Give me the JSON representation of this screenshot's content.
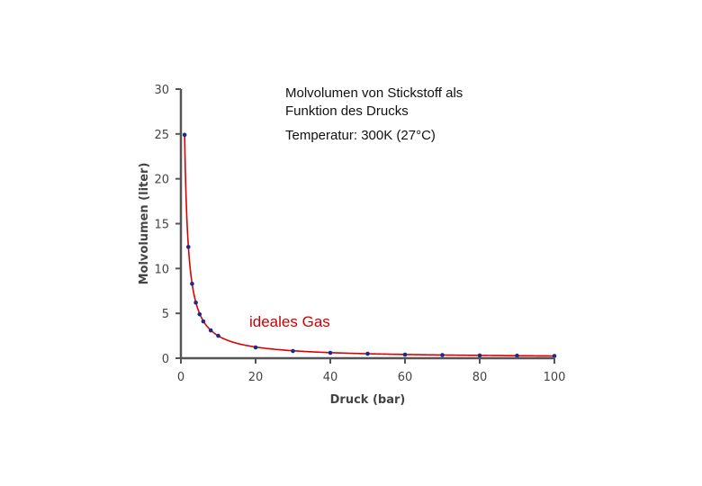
{
  "annotations": {
    "title_line1": "Molvolumen von Stickstoff als",
    "title_line2": "Funktion des Drucks",
    "temperature": "Temperatur: 300K  (27°C)",
    "curve_label": "ideales Gas"
  },
  "chart_data": {
    "type": "scatter",
    "xlabel": "Druck (bar)",
    "ylabel": "Molvolumen (liter)",
    "xlim": [
      0,
      100
    ],
    "ylim": [
      0,
      30
    ],
    "xticks": [
      0,
      20,
      40,
      60,
      80,
      100
    ],
    "yticks": [
      0,
      5,
      10,
      15,
      20,
      25,
      30
    ],
    "grid": false,
    "colors": {
      "curve": "#dd0000",
      "points": "#1a2a8a",
      "axis": "#555555"
    },
    "series": [
      {
        "name": "ideales Gas",
        "x": [
          1,
          2,
          3,
          4,
          5,
          6,
          8,
          10,
          20,
          30,
          40,
          50,
          60,
          70,
          80,
          90,
          100
        ],
        "y": [
          24.9,
          12.4,
          8.3,
          6.2,
          4.9,
          4.1,
          3.1,
          2.5,
          1.2,
          0.8,
          0.6,
          0.5,
          0.4,
          0.35,
          0.3,
          0.28,
          0.25
        ]
      }
    ]
  }
}
